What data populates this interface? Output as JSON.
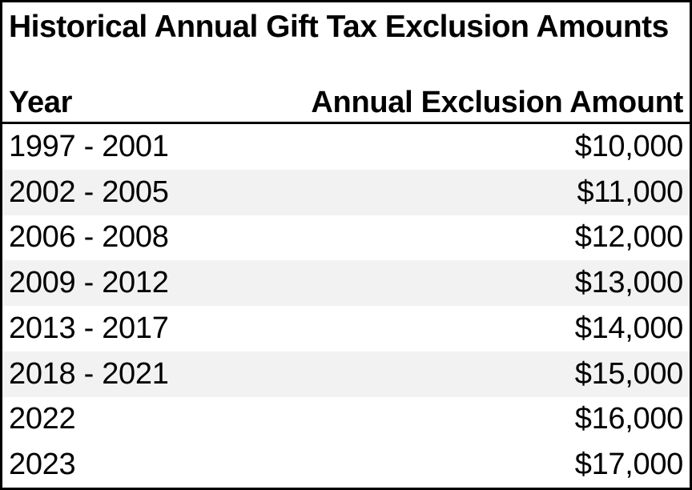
{
  "chart_data": {
    "type": "table",
    "title": "Historical Annual Gift Tax Exclusion Amounts",
    "columns": [
      "Year",
      "Annual Exclusion Amount"
    ],
    "categories": [
      "1997 - 2001",
      "2002 - 2005",
      "2006 - 2008",
      "2009 - 2012",
      "2013 - 2017",
      "2018 - 2021",
      "2022",
      "2023"
    ],
    "values": [
      10000,
      11000,
      12000,
      13000,
      14000,
      15000,
      16000,
      17000
    ],
    "rows": [
      [
        "1997 - 2001",
        "$10,000"
      ],
      [
        "2002 - 2005",
        "$11,000"
      ],
      [
        "2006 - 2008",
        "$12,000"
      ],
      [
        "2009 - 2012",
        "$13,000"
      ],
      [
        "2013 - 2017",
        "$14,000"
      ],
      [
        "2018 - 2021",
        "$15,000"
      ],
      [
        "2022",
        "$16,000"
      ],
      [
        "2023",
        "$17,000"
      ]
    ]
  },
  "table": {
    "title": "Historical Annual Gift Tax Exclusion Amounts",
    "header": {
      "year_label": "Year",
      "amount_label": "Annual Exclusion Amount"
    },
    "rows": [
      {
        "year": "1997 - 2001",
        "amount": "$10,000",
        "shaded": false
      },
      {
        "year": "2002 - 2005",
        "amount": "$11,000",
        "shaded": true
      },
      {
        "year": "2006 - 2008",
        "amount": "$12,000",
        "shaded": false
      },
      {
        "year": "2009 - 2012",
        "amount": "$13,000",
        "shaded": true
      },
      {
        "year": "2013 - 2017",
        "amount": "$14,000",
        "shaded": false
      },
      {
        "year": "2018 - 2021",
        "amount": "$15,000",
        "shaded": true
      },
      {
        "year": "2022",
        "amount": "$16,000",
        "shaded": false
      },
      {
        "year": "2023",
        "amount": "$17,000",
        "shaded": false
      }
    ]
  },
  "colors": {
    "background": "#ffffff",
    "text": "#000000",
    "border": "#000000",
    "row_shaded": "#f2f2f2"
  }
}
